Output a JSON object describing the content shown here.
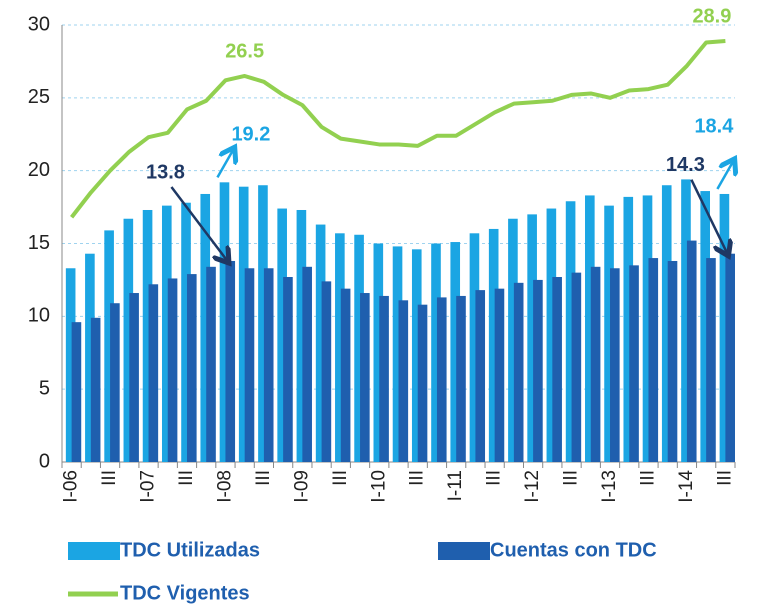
{
  "chart_data": {
    "type": "bar-line",
    "categories": [
      "I-06",
      null,
      "III",
      null,
      "I-07",
      null,
      "III",
      null,
      "I-08",
      null,
      "III",
      null,
      "I-09",
      null,
      "III",
      null,
      "I-10",
      null,
      "III",
      null,
      "I-11",
      null,
      "III",
      null,
      "I-12",
      null,
      "III",
      null,
      "I-13",
      null,
      "III",
      null,
      "I-14",
      null,
      "III"
    ],
    "series": [
      {
        "name": "TDC Utilizadas",
        "type": "bar",
        "color": "#1ba5e3",
        "labeled_points": [
          8,
          34
        ],
        "values": [
          13.3,
          14.3,
          15.9,
          16.7,
          17.3,
          17.6,
          17.8,
          18.4,
          19.2,
          18.9,
          19.0,
          17.4,
          17.3,
          16.3,
          15.7,
          15.6,
          15.0,
          14.8,
          14.6,
          15.0,
          15.1,
          15.7,
          16.0,
          16.7,
          17.0,
          17.4,
          17.9,
          18.3,
          17.6,
          18.2,
          18.3,
          19.0,
          19.4,
          18.6,
          18.4
        ]
      },
      {
        "name": "Cuentas con TDC",
        "type": "bar",
        "color": "#1f5fae",
        "labeled_points": [
          8,
          34
        ],
        "values": [
          9.6,
          9.9,
          10.9,
          11.6,
          12.2,
          12.6,
          12.9,
          13.4,
          13.8,
          13.3,
          13.3,
          12.7,
          13.4,
          12.4,
          11.9,
          11.6,
          11.4,
          11.1,
          10.8,
          11.3,
          11.4,
          11.8,
          11.9,
          12.3,
          12.5,
          12.7,
          13.0,
          13.4,
          13.3,
          13.5,
          14.0,
          13.8,
          15.2,
          14.0,
          14.3
        ]
      },
      {
        "name": "TDC Vigentes",
        "type": "line",
        "color": "#92d050",
        "labeled_points": [
          9,
          34
        ],
        "values": [
          16.8,
          18.5,
          20.0,
          21.3,
          22.3,
          22.6,
          24.2,
          24.8,
          26.2,
          26.5,
          26.1,
          25.2,
          24.5,
          23.0,
          22.2,
          22.0,
          21.8,
          21.8,
          21.7,
          22.4,
          22.4,
          23.2,
          24.0,
          24.6,
          24.7,
          24.8,
          25.2,
          25.3,
          25.0,
          25.5,
          25.6,
          25.9,
          27.2,
          28.8,
          28.9
        ]
      }
    ],
    "ylim": [
      0,
      30
    ],
    "yticks": [
      0,
      5,
      10,
      15,
      20,
      25,
      30
    ],
    "grid": true
  }
}
